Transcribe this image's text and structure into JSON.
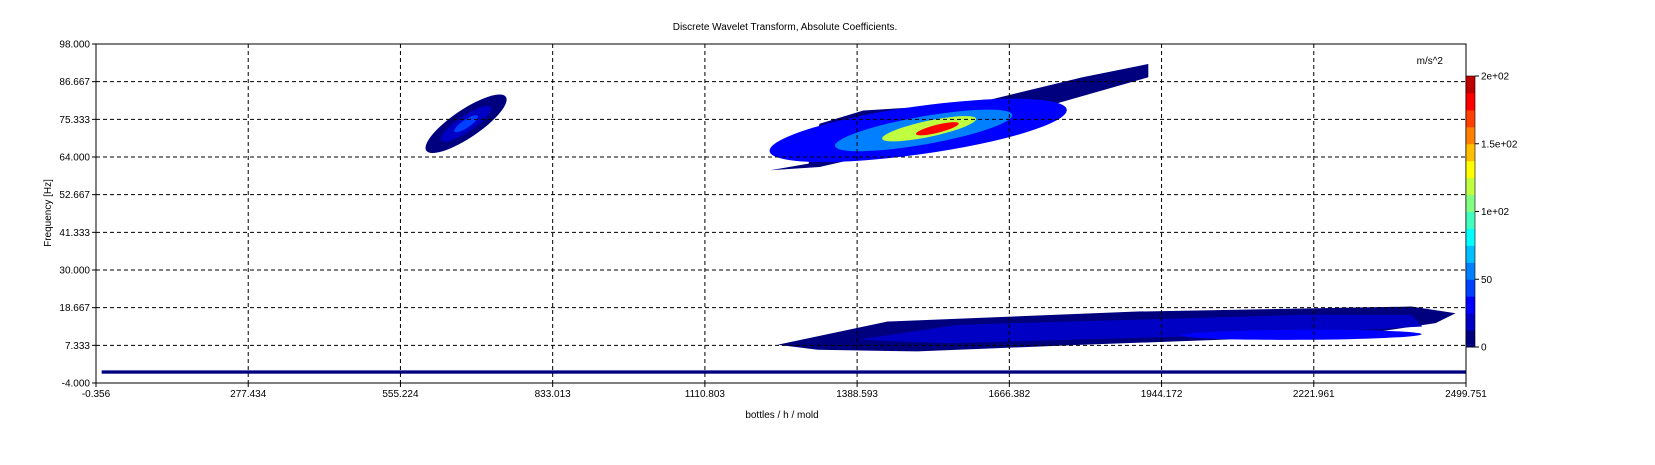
{
  "chart_data": {
    "type": "heatmap",
    "title": "Discrete Wavelet Transform, Absolute Coefficients.",
    "xlabel": "bottles / h / mold",
    "ylabel": "Frequency [Hz]",
    "xlim": [
      -0.356,
      2499.751
    ],
    "ylim": [
      -4.0,
      98.0
    ],
    "x_ticks": [
      "-0.356",
      "277.434",
      "555.224",
      "833.013",
      "1110.803",
      "1388.593",
      "1666.382",
      "1944.172",
      "2221.961",
      "2499.751"
    ],
    "y_ticks": [
      "-4.000",
      "7.333",
      "18.667",
      "30.000",
      "41.333",
      "52.667",
      "64.000",
      "75.333",
      "86.667",
      "98.000"
    ],
    "grid": true,
    "colorbar": {
      "unit": "m/s^2",
      "range": [
        0,
        200
      ],
      "tick_labels": [
        "0",
        "50",
        "1e+02",
        "1.5e+02",
        "2e+02"
      ],
      "tick_values": [
        0,
        50,
        100,
        150,
        200
      ],
      "levels": 16,
      "colormap": [
        "#00007f",
        "#0000c4",
        "#0000ff",
        "#0040ff",
        "#0080ff",
        "#00bfff",
        "#00ffff",
        "#40ffbf",
        "#80ff80",
        "#bfff40",
        "#ffff00",
        "#ffbf00",
        "#ff8000",
        "#ff4000",
        "#ff0000",
        "#bf0000"
      ]
    },
    "regions": [
      {
        "x_start": 10,
        "x_end": 2499,
        "f_low": -1.2,
        "f_high": -0.2,
        "peak": 12
      },
      {
        "x_start": 1280,
        "x_end": 2499,
        "f_low": 6,
        "f_high": 19,
        "peak": 32,
        "peak_x": 2200,
        "peak_f": 10.5
      },
      {
        "x_start": 615,
        "x_end": 760,
        "f_low": 66,
        "f_high": 87,
        "peak": 42,
        "peak_x": 675,
        "peak_f": 74
      },
      {
        "x_start": 1230,
        "x_end": 1920,
        "f_low": 60,
        "f_high": 92,
        "peak": 175,
        "peak_x": 1535,
        "peak_f": 72.5
      }
    ]
  }
}
